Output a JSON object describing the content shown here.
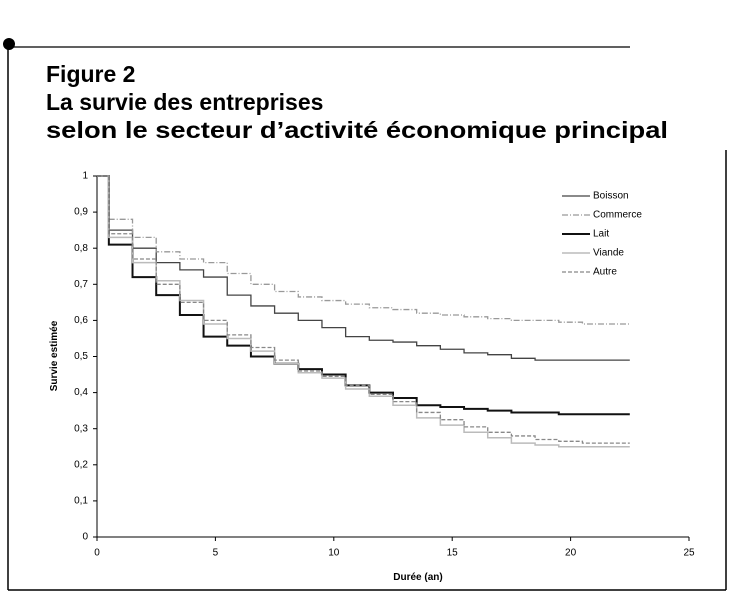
{
  "figure_label": "Figure 2",
  "title_lines": [
    "La survie des entreprises",
    "selon le secteur d’activité économique principal"
  ],
  "chart_data": {
    "type": "step",
    "x_label": "Durée (an)",
    "y_label": "Survie estimée",
    "x": [
      0,
      0.5,
      1.5,
      2.5,
      3.5,
      4.5,
      5.5,
      6.5,
      7.5,
      8.5,
      9.5,
      10.5,
      11.5,
      12.5,
      13.5,
      14.5,
      15.5,
      16.5,
      17.5,
      18.5,
      19.5,
      20.5,
      21.5,
      22.5
    ],
    "xlim": [
      0,
      25
    ],
    "xticks": [
      0,
      5,
      10,
      15,
      20,
      25
    ],
    "ylim": [
      0,
      1
    ],
    "yticks": [
      0,
      {
        "value": 0.1,
        "label": "0,1"
      },
      {
        "value": 0.2,
        "label": "0,2"
      },
      {
        "value": 0.3,
        "label": "0,3"
      },
      {
        "value": 0.4,
        "label": "0,4"
      },
      {
        "value": 0.5,
        "label": "0,5"
      },
      {
        "value": 0.6,
        "label": "0,6"
      },
      {
        "value": 0.7,
        "label": "0,7"
      },
      {
        "value": 0.8,
        "label": "0,8"
      },
      {
        "value": 0.9,
        "label": "0,9"
      },
      1
    ],
    "grid": false,
    "legend": "upper right",
    "series": [
      {
        "name": "Boisson",
        "color": "#444444",
        "dash": "none",
        "line_width": 1.3,
        "values": [
          1,
          0.85,
          0.8,
          0.76,
          0.74,
          0.72,
          0.67,
          0.64,
          0.62,
          0.6,
          0.58,
          0.555,
          0.545,
          0.54,
          0.53,
          0.52,
          0.51,
          0.505,
          0.495,
          0.49,
          0.49,
          0.49,
          0.49,
          0.49
        ]
      },
      {
        "name": "Commerce",
        "color": "#999999",
        "dash": "6 2 1 2",
        "line_width": 1.3,
        "values": [
          1,
          0.88,
          0.83,
          0.79,
          0.77,
          0.76,
          0.73,
          0.7,
          0.68,
          0.665,
          0.655,
          0.645,
          0.635,
          0.63,
          0.62,
          0.615,
          0.61,
          0.605,
          0.6,
          0.6,
          0.595,
          0.59,
          0.59,
          0.59
        ]
      },
      {
        "name": "Lait",
        "color": "#111111",
        "dash": "none",
        "line_width": 2,
        "values": [
          1,
          0.81,
          0.72,
          0.67,
          0.615,
          0.555,
          0.53,
          0.5,
          0.48,
          0.465,
          0.45,
          0.42,
          0.4,
          0.385,
          0.365,
          0.36,
          0.355,
          0.35,
          0.345,
          0.345,
          0.34,
          0.34,
          0.34,
          0.34
        ]
      },
      {
        "name": "Viande",
        "color": "#bbbbbb",
        "dash": "none",
        "line_width": 1.5,
        "values": [
          1,
          0.83,
          0.76,
          0.71,
          0.655,
          0.59,
          0.55,
          0.515,
          0.48,
          0.455,
          0.44,
          0.41,
          0.39,
          0.365,
          0.33,
          0.31,
          0.29,
          0.275,
          0.26,
          0.255,
          0.25,
          0.25,
          0.25,
          0.25
        ]
      },
      {
        "name": "Autre",
        "color": "#888888",
        "dash": "4 2",
        "line_width": 1.3,
        "values": [
          1,
          0.84,
          0.77,
          0.7,
          0.65,
          0.6,
          0.56,
          0.525,
          0.49,
          0.46,
          0.445,
          0.42,
          0.395,
          0.375,
          0.345,
          0.325,
          0.305,
          0.29,
          0.28,
          0.27,
          0.265,
          0.26,
          0.26,
          0.26
        ]
      }
    ]
  }
}
